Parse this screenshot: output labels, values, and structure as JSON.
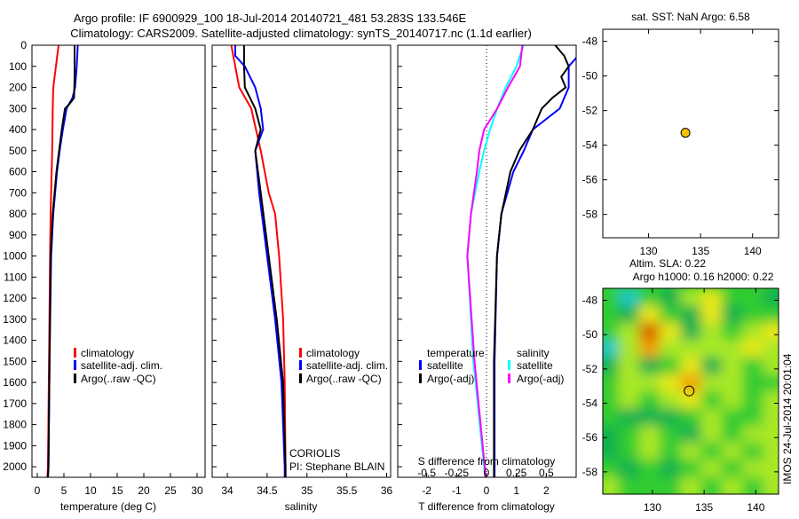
{
  "header": {
    "title_line1": "Argo profile: IF 6900929_100 18-Jul-2014 20140721_481 53.283S 133.546E",
    "title_line2": "Climatology: CARS2009. Satellite-adjusted climatology: synTS_20140717.nc (1.1d earlier)"
  },
  "colors": {
    "climatology": "#ff0000",
    "satellite": "#0000ff",
    "argo": "#000000",
    "sat_s": "#00ffff",
    "argo_s": "#ff00ff",
    "dot": "#f5c000"
  },
  "chart_data": [
    {
      "type": "line",
      "id": "temperature",
      "xlabel": "temperature (deg C)",
      "ylabel": "",
      "xlim": [
        -1,
        31.5
      ],
      "ylim": [
        2050,
        0
      ],
      "xticks": [
        "0",
        "5",
        "10",
        "15",
        "20",
        "25",
        "30"
      ],
      "xtick_values": [
        0,
        5,
        10,
        15,
        20,
        25,
        30
      ],
      "yticks": [
        "0",
        "100",
        "200",
        "300",
        "400",
        "500",
        "600",
        "700",
        "800",
        "900",
        "1000",
        "1100",
        "1200",
        "1300",
        "1400",
        "1500",
        "1600",
        "1700",
        "1800",
        "1900",
        "2000"
      ],
      "ytick_values": [
        0,
        100,
        200,
        300,
        400,
        500,
        600,
        700,
        800,
        900,
        1000,
        1100,
        1200,
        1300,
        1400,
        1500,
        1600,
        1700,
        1800,
        1900,
        2000
      ],
      "legend": [
        "climatology",
        "satellite-adj. clim.",
        "Argo(..raw -QC)"
      ],
      "series": [
        {
          "name": "climatology",
          "depth": [
            0,
            100,
            200,
            300,
            500,
            800,
            1000,
            1500,
            2000,
            2050
          ],
          "values": [
            4.0,
            3.5,
            3.0,
            2.9,
            2.8,
            2.5,
            2.4,
            2.2,
            2.0,
            1.9
          ]
        },
        {
          "name": "satellite-adj. clim.",
          "depth": [
            0,
            100,
            200,
            250,
            300,
            400,
            500,
            600,
            800,
            1000,
            1500,
            2000,
            2050
          ],
          "values": [
            7.6,
            7.4,
            7.1,
            6.6,
            5.5,
            4.8,
            4.2,
            3.7,
            3.0,
            2.6,
            2.3,
            2.1,
            2.0
          ]
        },
        {
          "name": "Argo(..raw -QC)",
          "depth": [
            0,
            150,
            250,
            280,
            300,
            400,
            500,
            600,
            800,
            1000,
            1500,
            2000,
            2050
          ],
          "values": [
            7.0,
            7.0,
            6.9,
            6.0,
            5.2,
            4.6,
            4.1,
            3.6,
            2.9,
            2.5,
            2.3,
            2.1,
            2.0
          ]
        }
      ]
    },
    {
      "type": "line",
      "id": "salinity",
      "xlabel": "salinity",
      "xlim": [
        33.81,
        36.05
      ],
      "ylim": [
        2050,
        0
      ],
      "xticks": [
        "34",
        "34.5",
        "35",
        "35.5",
        "36"
      ],
      "xtick_values": [
        34,
        34.5,
        35,
        35.5,
        36
      ],
      "legend": [
        "climatology",
        "satellite-adj. clim.",
        "Argo(..raw -QC)"
      ],
      "annotations": [
        "CORIOLIS",
        "PI: Stephane BLAIN"
      ],
      "series": [
        {
          "name": "climatology",
          "depth": [
            0,
            200,
            300,
            500,
            700,
            800,
            1000,
            1300,
            1600,
            2000,
            2050
          ],
          "values": [
            34.05,
            34.15,
            34.3,
            34.42,
            34.52,
            34.6,
            34.65,
            34.7,
            34.72,
            34.73,
            34.73
          ]
        },
        {
          "name": "satellite-adj. clim.",
          "depth": [
            0,
            50,
            100,
            200,
            300,
            400,
            500,
            700,
            1000,
            1300,
            1600,
            2000,
            2050
          ],
          "values": [
            34.1,
            34.1,
            34.22,
            34.35,
            34.42,
            34.45,
            34.35,
            34.4,
            34.5,
            34.6,
            34.68,
            34.72,
            34.72
          ]
        },
        {
          "name": "Argo(..raw -QC)",
          "depth": [
            0,
            100,
            200,
            300,
            400,
            500,
            700,
            1000,
            1300,
            1600,
            2000,
            2050
          ],
          "values": [
            34.21,
            34.21,
            34.22,
            34.35,
            34.42,
            34.35,
            34.42,
            34.52,
            34.62,
            34.7,
            34.73,
            34.73
          ]
        }
      ]
    },
    {
      "type": "line",
      "id": "difference",
      "xlabel": "T difference from climatology",
      "x2label": "S difference from climatology",
      "xlim": [
        -2.97,
        3.0
      ],
      "x2lim": [
        -0.7425,
        0.75
      ],
      "ylim": [
        2050,
        0
      ],
      "xticks": [
        "-2",
        "-1",
        "0",
        "1",
        "2"
      ],
      "xtick_values": [
        -2,
        -1,
        0,
        1,
        2
      ],
      "x2ticks": [
        "-0.5",
        "-0.25",
        "0",
        "0.25",
        "0.5"
      ],
      "x2tick_values": [
        -0.5,
        -0.25,
        0,
        0.25,
        0.5
      ],
      "legend_headers": [
        "temperature",
        "salinity"
      ],
      "legend": [
        "satellite",
        "Argo(-adj)",
        "satellite",
        "Argo(-adj)"
      ],
      "series": [
        {
          "name": "T satellite",
          "axis": "T",
          "depth": [
            0,
            60,
            100,
            200,
            300,
            400,
            500,
            600,
            800,
            1000,
            1500,
            2000,
            2050
          ],
          "values": [
            3.2,
            3.0,
            2.75,
            2.75,
            2.45,
            1.55,
            1.25,
            0.9,
            0.5,
            0.35,
            0.27,
            0.27,
            0.27
          ]
        },
        {
          "name": "T Argo(-adj)",
          "axis": "T",
          "depth": [
            0,
            50,
            100,
            150,
            200,
            250,
            300,
            400,
            500,
            600,
            700,
            800,
            1000,
            1500,
            2000,
            2050
          ],
          "values": [
            2.3,
            2.6,
            2.75,
            2.5,
            2.65,
            2.2,
            1.85,
            1.55,
            1.1,
            0.8,
            0.65,
            0.5,
            0.35,
            0.25,
            0.25,
            0.25
          ]
        },
        {
          "name": "S satellite",
          "axis": "S",
          "depth": [
            0,
            100,
            200,
            300,
            400,
            500,
            600,
            800,
            1000,
            1500,
            2000,
            2050
          ],
          "values": [
            0.31,
            0.25,
            0.16,
            0.09,
            0.03,
            -0.02,
            -0.06,
            -0.13,
            -0.16,
            -0.11,
            -0.02,
            -0.01
          ]
        },
        {
          "name": "S Argo(-adj)",
          "axis": "S",
          "depth": [
            0,
            100,
            200,
            300,
            400,
            500,
            600,
            800,
            1000,
            1500,
            2000,
            2050
          ],
          "values": [
            0.3,
            0.28,
            0.18,
            0.09,
            -0.02,
            -0.06,
            -0.08,
            -0.13,
            -0.16,
            -0.1,
            -0.015,
            -0.01
          ]
        }
      ]
    },
    {
      "type": "scatter",
      "id": "sst-map",
      "title": "sat. SST: NaN Argo: 6.58",
      "xlim": [
        125.6,
        142.5
      ],
      "ylim": [
        -59.35,
        -47.3
      ],
      "xticks": [
        "130",
        "135",
        "140"
      ],
      "xtick_values": [
        130,
        135,
        140
      ],
      "yticks": [
        "-48",
        "-50",
        "-52",
        "-54",
        "-56",
        "-58"
      ],
      "ytick_values": [
        -48,
        -50,
        -52,
        -54,
        -56,
        -58
      ],
      "points": [
        {
          "lon": 133.546,
          "lat": -53.283
        }
      ]
    },
    {
      "type": "heatmap",
      "id": "sla-map",
      "title_line1": "Altim. SLA: 0.22",
      "title_line2": "Argo h1000: 0.16 h2000: 0.22",
      "side_label": "IMOS 24-Jul-2014 20:01:04",
      "xlim": [
        125.2,
        142.2
      ],
      "ylim": [
        -59.3,
        -47.3
      ],
      "xticks": [
        "130",
        "135",
        "140"
      ],
      "xtick_values": [
        130,
        135,
        140
      ],
      "yticks": [
        "-48",
        "-50",
        "-52",
        "-54",
        "-56",
        "-58"
      ],
      "ytick_values": [
        -48,
        -50,
        -52,
        -54,
        -56,
        -58
      ],
      "grid_lon": [
        126,
        128,
        130,
        132,
        134,
        136,
        138,
        140,
        142
      ],
      "grid_lat": [
        -48,
        -49,
        -50,
        -51,
        -52,
        -53,
        -54,
        -55,
        -56,
        -57,
        -58,
        -59
      ],
      "sla_level": [
        [
          2,
          0,
          2,
          1,
          3,
          4,
          2,
          2,
          1
        ],
        [
          2,
          1,
          4,
          2,
          1,
          4,
          1,
          2,
          2
        ],
        [
          2,
          3,
          6,
          4,
          1,
          3,
          2,
          3,
          4
        ],
        [
          0,
          3,
          5,
          3,
          3,
          3,
          3,
          4,
          3
        ],
        [
          1,
          3,
          1,
          2,
          4,
          1,
          3,
          2,
          3
        ],
        [
          2,
          3,
          3,
          4,
          5,
          3,
          3,
          2,
          2
        ],
        [
          2,
          3,
          2,
          3,
          4,
          2,
          3,
          2,
          3
        ],
        [
          2,
          1,
          1,
          1,
          2,
          3,
          2,
          2,
          3
        ],
        [
          1,
          2,
          3,
          2,
          1,
          3,
          2,
          3,
          3
        ],
        [
          1,
          2,
          3,
          2,
          3,
          2,
          3,
          2,
          3
        ],
        [
          2,
          1,
          2,
          1,
          2,
          3,
          2,
          3,
          3
        ],
        [
          3,
          2,
          2,
          2,
          3,
          2,
          3,
          2,
          3
        ]
      ],
      "colormap": [
        "#1fc8c8",
        "#10b050",
        "#30cc30",
        "#a8e828",
        "#e8e818",
        "#f0a000",
        "#d86000"
      ],
      "points": [
        {
          "lon": 133.546,
          "lat": -53.283
        }
      ]
    }
  ]
}
